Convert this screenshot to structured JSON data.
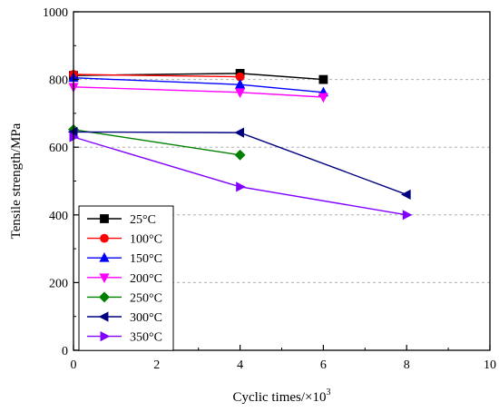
{
  "chart_data": {
    "type": "line",
    "title": "",
    "xlabel": "Cyclic times/×10",
    "xlabel_sup": "3",
    "ylabel": "Tensile strength/MPa",
    "xlim": [
      0,
      10
    ],
    "ylim": [
      0,
      1000
    ],
    "xticks": [
      "0",
      "2",
      "4",
      "6",
      "8",
      "10"
    ],
    "yticks": [
      "0",
      "200",
      "400",
      "600",
      "800",
      "1000"
    ],
    "grid": "horizontal dashed",
    "legend_position": "bottom-left",
    "series": [
      {
        "name": "25°C",
        "color": "#000000",
        "marker": "square",
        "x": [
          0,
          4,
          6
        ],
        "y": [
          812,
          818,
          800
        ]
      },
      {
        "name": "100°C",
        "color": "#ff0000",
        "marker": "circle",
        "x": [
          0,
          4
        ],
        "y": [
          815,
          808
        ]
      },
      {
        "name": "150°C",
        "color": "#0000ff",
        "marker": "triangle-up",
        "x": [
          0,
          4,
          6
        ],
        "y": [
          805,
          785,
          762
        ]
      },
      {
        "name": "200°C",
        "color": "#ff00ff",
        "marker": "triangle-down",
        "x": [
          0,
          4,
          6
        ],
        "y": [
          778,
          762,
          748
        ]
      },
      {
        "name": "250°C",
        "color": "#008000",
        "marker": "diamond",
        "x": [
          0,
          4
        ],
        "y": [
          652,
          577
        ]
      },
      {
        "name": "300°C",
        "color": "#000080",
        "marker": "triangle-left",
        "x": [
          0,
          4,
          8
        ],
        "y": [
          645,
          643,
          460
        ]
      },
      {
        "name": "350°C",
        "color": "#8000ff",
        "marker": "triangle-right",
        "x": [
          0,
          4,
          8
        ],
        "y": [
          630,
          483,
          400
        ]
      }
    ]
  }
}
